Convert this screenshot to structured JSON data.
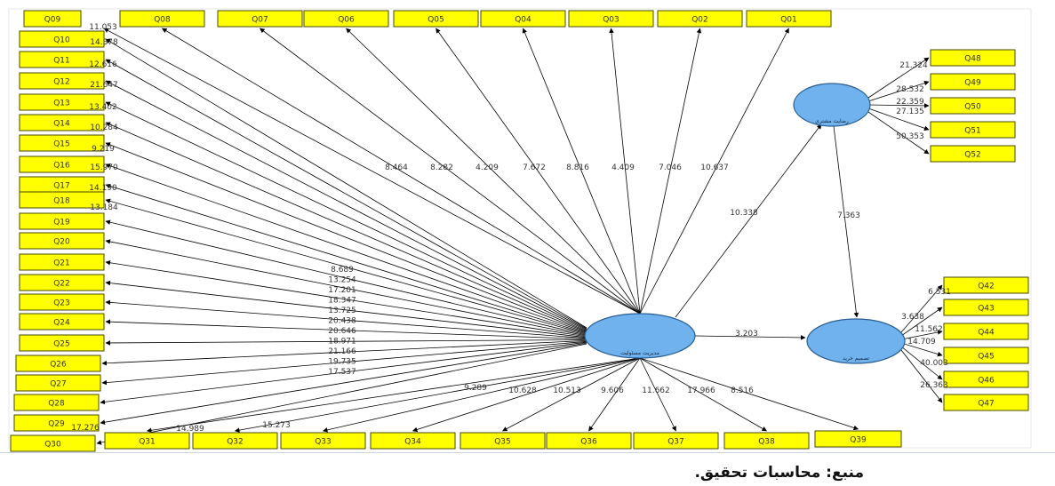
{
  "diagram": {
    "indicators_top": [
      "Q09",
      "Q08",
      "Q07",
      "Q06",
      "Q05",
      "Q04",
      "Q03",
      "Q02",
      "Q01"
    ],
    "indicators_left": [
      "Q10",
      "Q11",
      "Q12",
      "Q13",
      "Q14",
      "Q15",
      "Q16",
      "Q17",
      "Q18",
      "Q19",
      "Q20",
      "Q21",
      "Q22",
      "Q23",
      "Q24",
      "Q25",
      "Q26",
      "Q27",
      "Q28",
      "Q29",
      "Q30"
    ],
    "indicators_bottom": [
      "Q31",
      "Q32",
      "Q33",
      "Q34",
      "Q35",
      "Q36",
      "Q37",
      "Q38",
      "Q39"
    ],
    "indicators_right_top": [
      "Q48",
      "Q49",
      "Q50",
      "Q51",
      "Q52"
    ],
    "indicators_right_bottom": [
      "Q42",
      "Q43",
      "Q44",
      "Q45",
      "Q46",
      "Q47"
    ],
    "constructs": {
      "central_label": "ﻣﺪﯾﺮﯾﺖ ﻣﺴﺌﻮﻟﯿﺖ",
      "upper_right_label": "رﺿﺎﯾﺖ ﻣﺸﺘﺮی",
      "lower_right_label": "ﺗﺼﻤﯿﻢ ﺧﺮﯾﺪ"
    },
    "path_coefficients": {
      "central_to_upper": "10.338",
      "upper_to_lower": "7.363",
      "central_to_lower": "3.203"
    },
    "top_loadings": [
      "8.464",
      "8.282",
      "4.209",
      "7.672",
      "8.816",
      "4.409",
      "7.046",
      "10.637"
    ],
    "left_top_loadings": [
      "11.053",
      "14.378",
      "12.616",
      "21.647",
      "13.402",
      "10.284",
      "9.219",
      "15.970",
      "14.190",
      "13.184"
    ],
    "left_mid_loadings": [
      "8.689",
      "13.254",
      "17.201",
      "18.347",
      "13.725",
      "20.438",
      "20.646",
      "18.971",
      "21.166",
      "19.735",
      "17.537"
    ],
    "left_bottom_loadings": [
      "17.276",
      "14.989",
      "15.273"
    ],
    "bottom_loadings": [
      "9.289",
      "10.628",
      "10.513",
      "9.606",
      "11.662",
      "17.966",
      "8.516"
    ],
    "right_top_loadings": [
      "21.324",
      "28.532",
      "22.359",
      "27.135",
      "50.353"
    ],
    "right_bottom_loadings": [
      "6.531",
      "3.638",
      "11.562",
      "14.709",
      "40.003",
      "26.363"
    ],
    "colors": {
      "indicator_fill": "#ffff00",
      "indicator_border": "#4a4a00",
      "construct_fill": "#6fb2ee",
      "construct_border": "#2a5d8f",
      "line": "#000000"
    }
  },
  "caption": {
    "source_text": "ﻣﻨﺒﻊ: ﻣﺤﺎﺳﺒﺎت ﺗﺤﻘﯿﻖ."
  }
}
